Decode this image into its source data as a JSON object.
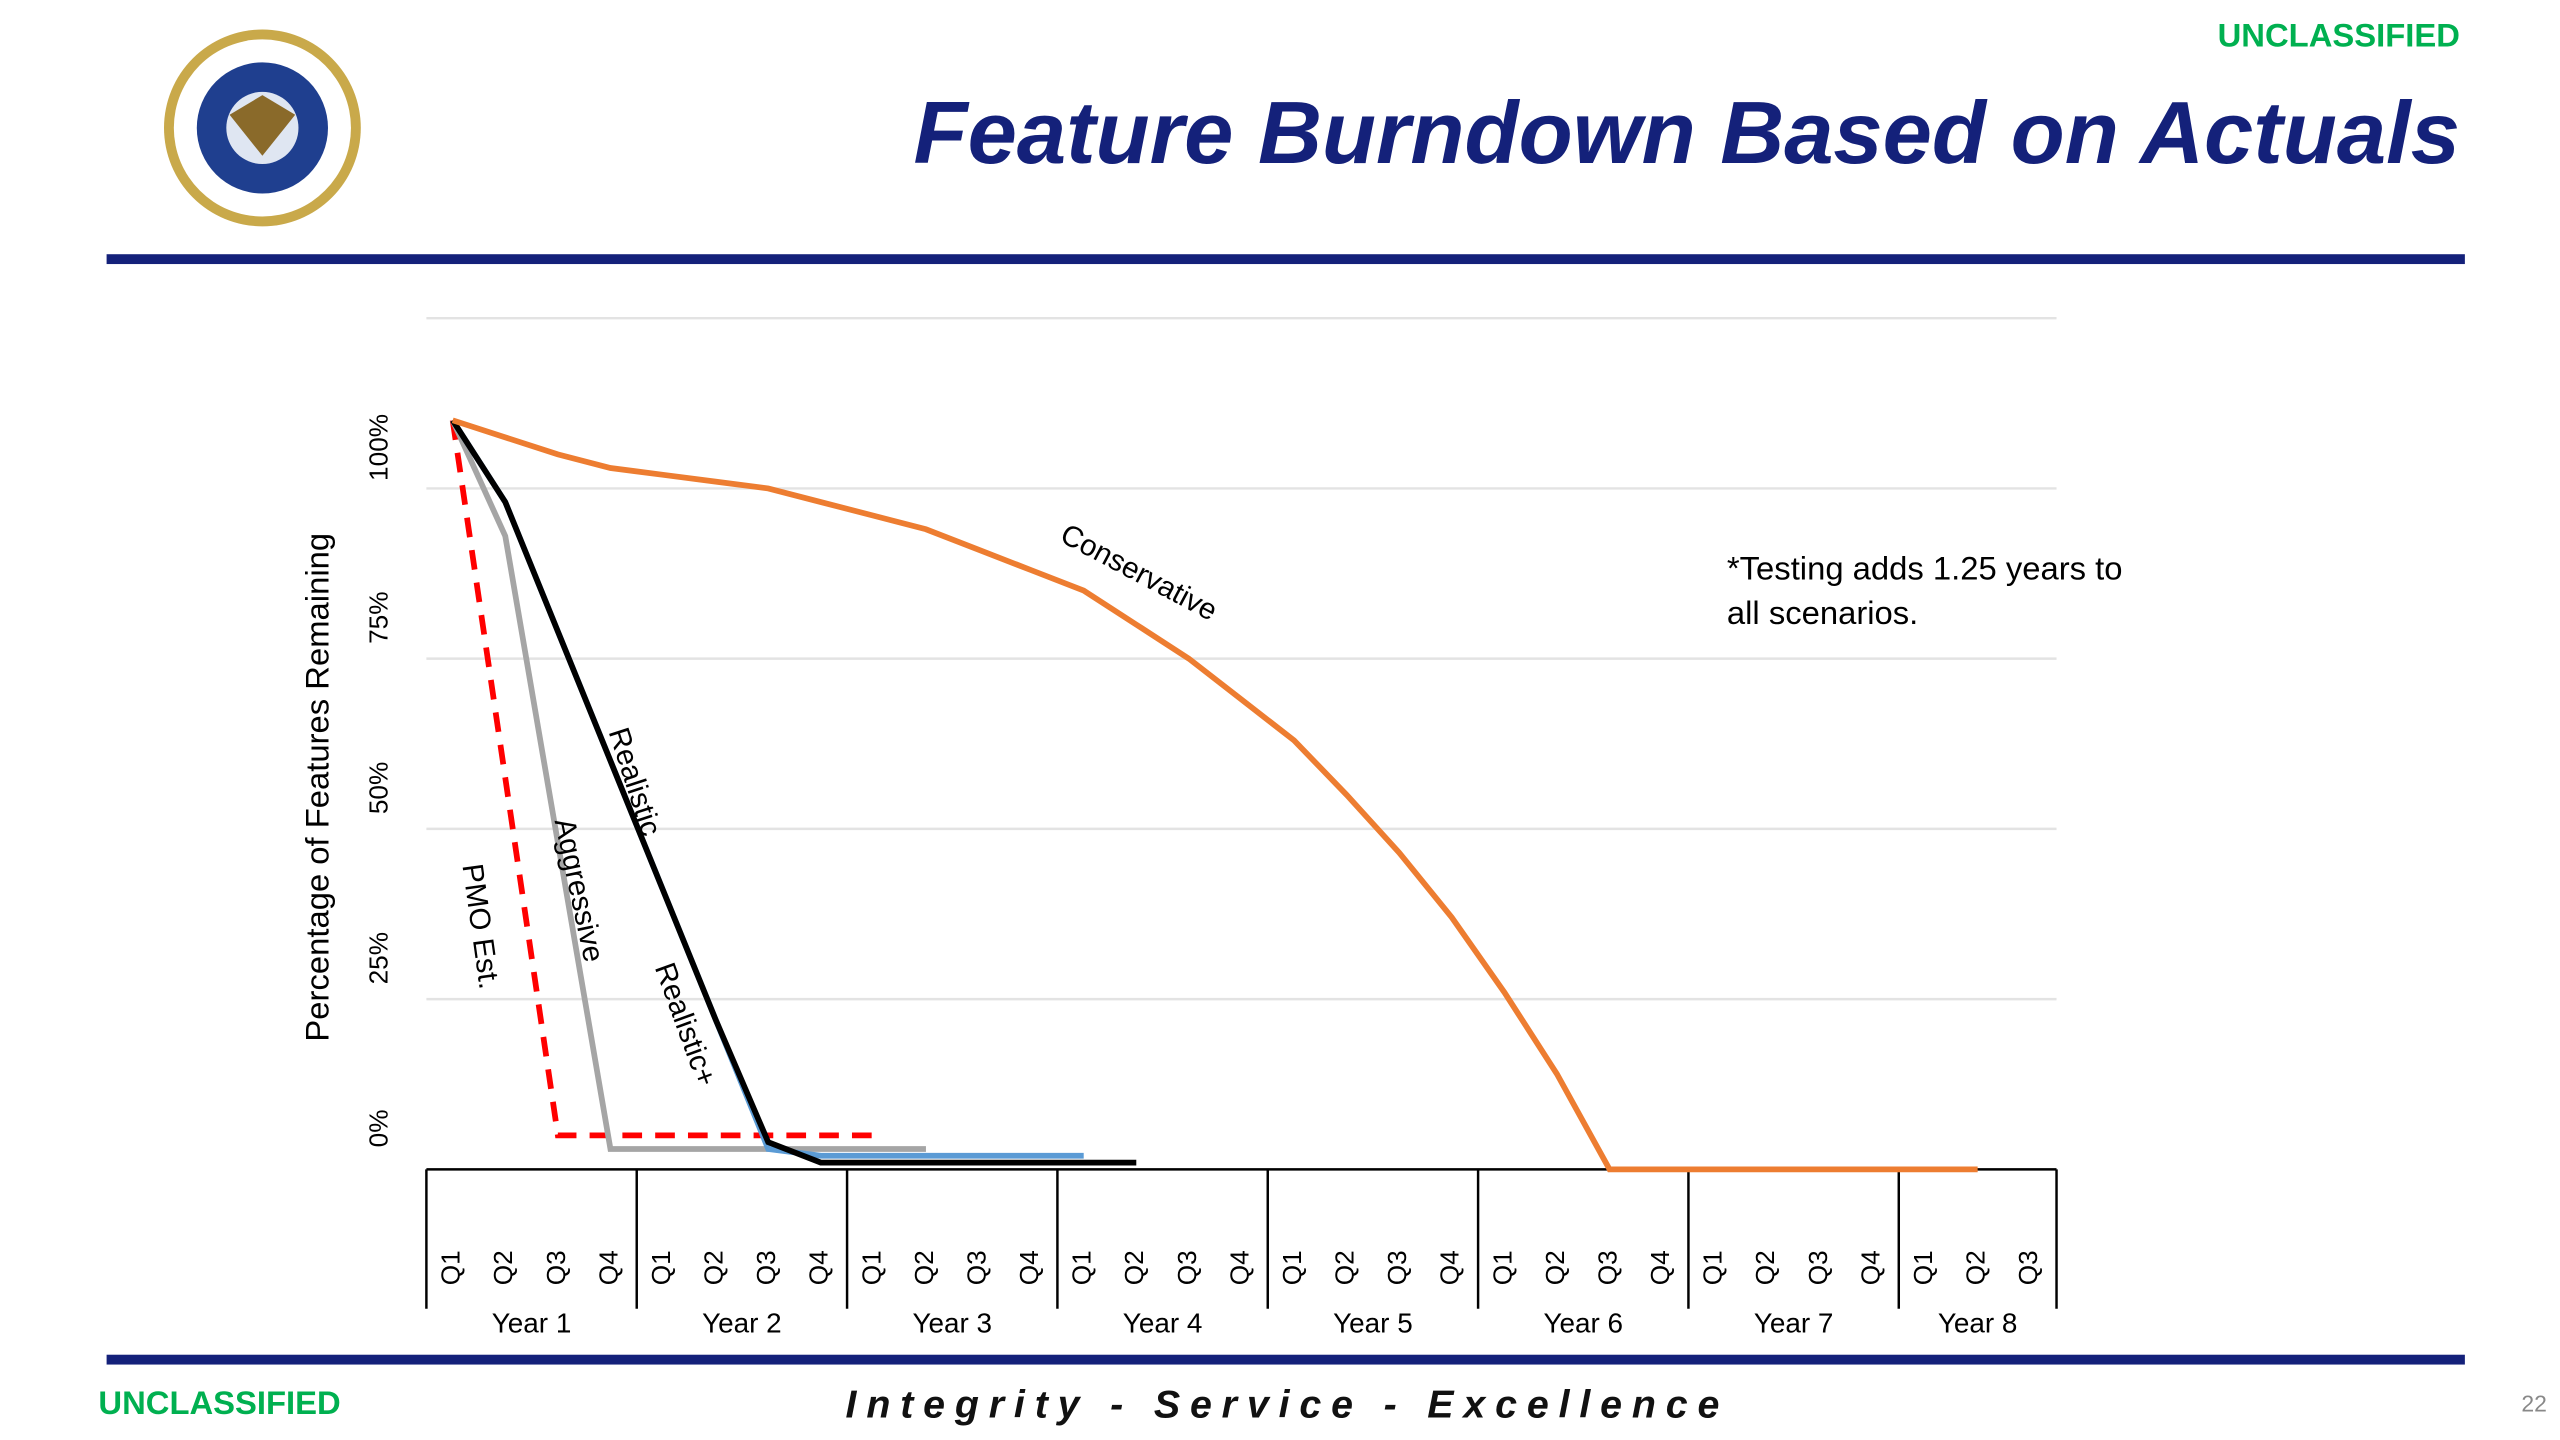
{
  "header": {
    "classification": "UNCLASSIFIED",
    "title": "Feature Burndown Based on Actuals"
  },
  "chart_data": {
    "type": "line",
    "y_label": "Percentage of Features Remaining",
    "annotation": "*Testing adds 1.25 years to all scenarios.",
    "categories": [
      "Q1",
      "Q2",
      "Q3",
      "Q4",
      "Q1",
      "Q2",
      "Q3",
      "Q4",
      "Q1",
      "Q2",
      "Q3",
      "Q4",
      "Q1",
      "Q2",
      "Q3",
      "Q4",
      "Q1",
      "Q2",
      "Q3",
      "Q4",
      "Q1",
      "Q2",
      "Q3",
      "Q4",
      "Q1",
      "Q2",
      "Q3",
      "Q4",
      "Q1",
      "Q2",
      "Q3"
    ],
    "groups": [
      "Year 1",
      "Year 2",
      "Year 3",
      "Year 4",
      "Year 5",
      "Year 6",
      "Year 7",
      "Year 8"
    ],
    "ylim": [
      0,
      125
    ],
    "yticks": [
      {
        "value": 0,
        "label": "0%"
      },
      {
        "value": 25,
        "label": "25%"
      },
      {
        "value": 50,
        "label": "50%"
      },
      {
        "value": 75,
        "label": "75%"
      },
      {
        "value": 100,
        "label": "100%"
      }
    ],
    "grid": true,
    "series": [
      {
        "name": "PMO Est.",
        "color": "#ff0000",
        "style": "dashed",
        "values": [
          110,
          57.5,
          5,
          5,
          5,
          5,
          5,
          5,
          5,
          null,
          null,
          null,
          null,
          null,
          null,
          null,
          null,
          null,
          null,
          null,
          null,
          null,
          null,
          null,
          null,
          null,
          null,
          null,
          null,
          null,
          null
        ]
      },
      {
        "name": "Aggressive",
        "color": "#a5a5a5",
        "style": "solid",
        "values": [
          110,
          93,
          48,
          3,
          3,
          3,
          3,
          3,
          3,
          3,
          null,
          null,
          null,
          null,
          null,
          null,
          null,
          null,
          null,
          null,
          null,
          null,
          null,
          null,
          null,
          null,
          null,
          null,
          null,
          null,
          null
        ]
      },
      {
        "name": "Realistic+",
        "color": "#5b9bd5",
        "style": "solid",
        "values": [
          110,
          98,
          79,
          60,
          41,
          22,
          3,
          2,
          2,
          2,
          2,
          2,
          2,
          null,
          null,
          null,
          null,
          null,
          null,
          null,
          null,
          null,
          null,
          null,
          null,
          null,
          null,
          null,
          null,
          null,
          null
        ]
      },
      {
        "name": "Realistic",
        "color": "#000000",
        "style": "solid",
        "values": [
          110,
          98,
          79,
          60,
          41,
          22,
          4,
          1,
          1,
          1,
          1,
          1,
          1,
          1,
          null,
          null,
          null,
          null,
          null,
          null,
          null,
          null,
          null,
          null,
          null,
          null,
          null,
          null,
          null,
          null,
          null
        ]
      },
      {
        "name": "Conservative",
        "color": "#ed7d31",
        "style": "solid",
        "values": [
          110,
          107.5,
          105,
          103,
          102,
          101,
          100,
          98,
          96,
          94,
          91,
          88,
          85,
          80,
          75,
          69,
          63,
          55,
          46.5,
          37,
          26,
          14,
          0,
          0,
          0,
          0,
          0,
          0,
          0,
          0,
          null
        ]
      }
    ]
  },
  "footer": {
    "classification": "UNCLASSIFIED",
    "motto": "Integrity - Service - Excellence",
    "page": "22"
  }
}
